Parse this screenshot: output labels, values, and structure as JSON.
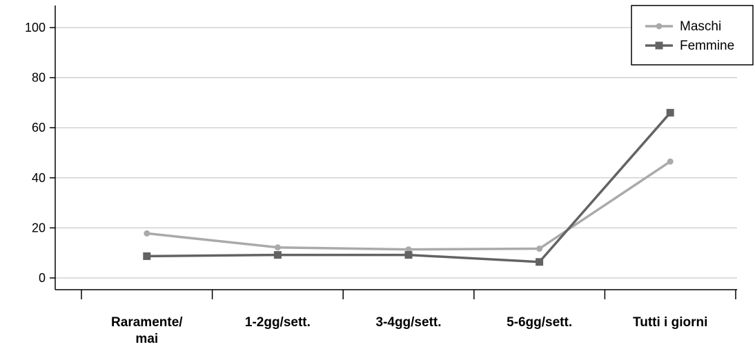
{
  "chart_data": {
    "type": "line",
    "categories": [
      [
        "Raramente/",
        "mai"
      ],
      [
        "1-2gg/sett."
      ],
      [
        "3-4gg/sett."
      ],
      [
        "5-6gg/sett."
      ],
      [
        "Tutti i giorni"
      ]
    ],
    "series": [
      {
        "name": "Maschi",
        "values": [
          17.8,
          12.2,
          11.4,
          11.7,
          46.5
        ],
        "color": "#aaaaaa",
        "marker": "circle"
      },
      {
        "name": "Femmine",
        "values": [
          8.7,
          9.2,
          9.2,
          6.4,
          66.0
        ],
        "color": "#636363",
        "marker": "square"
      }
    ],
    "ylim": [
      -2,
      110
    ],
    "yticks": [
      0,
      20,
      40,
      60,
      80,
      100
    ],
    "grid": true,
    "legend": "top-right",
    "title": "",
    "xlabel": "",
    "ylabel": ""
  }
}
